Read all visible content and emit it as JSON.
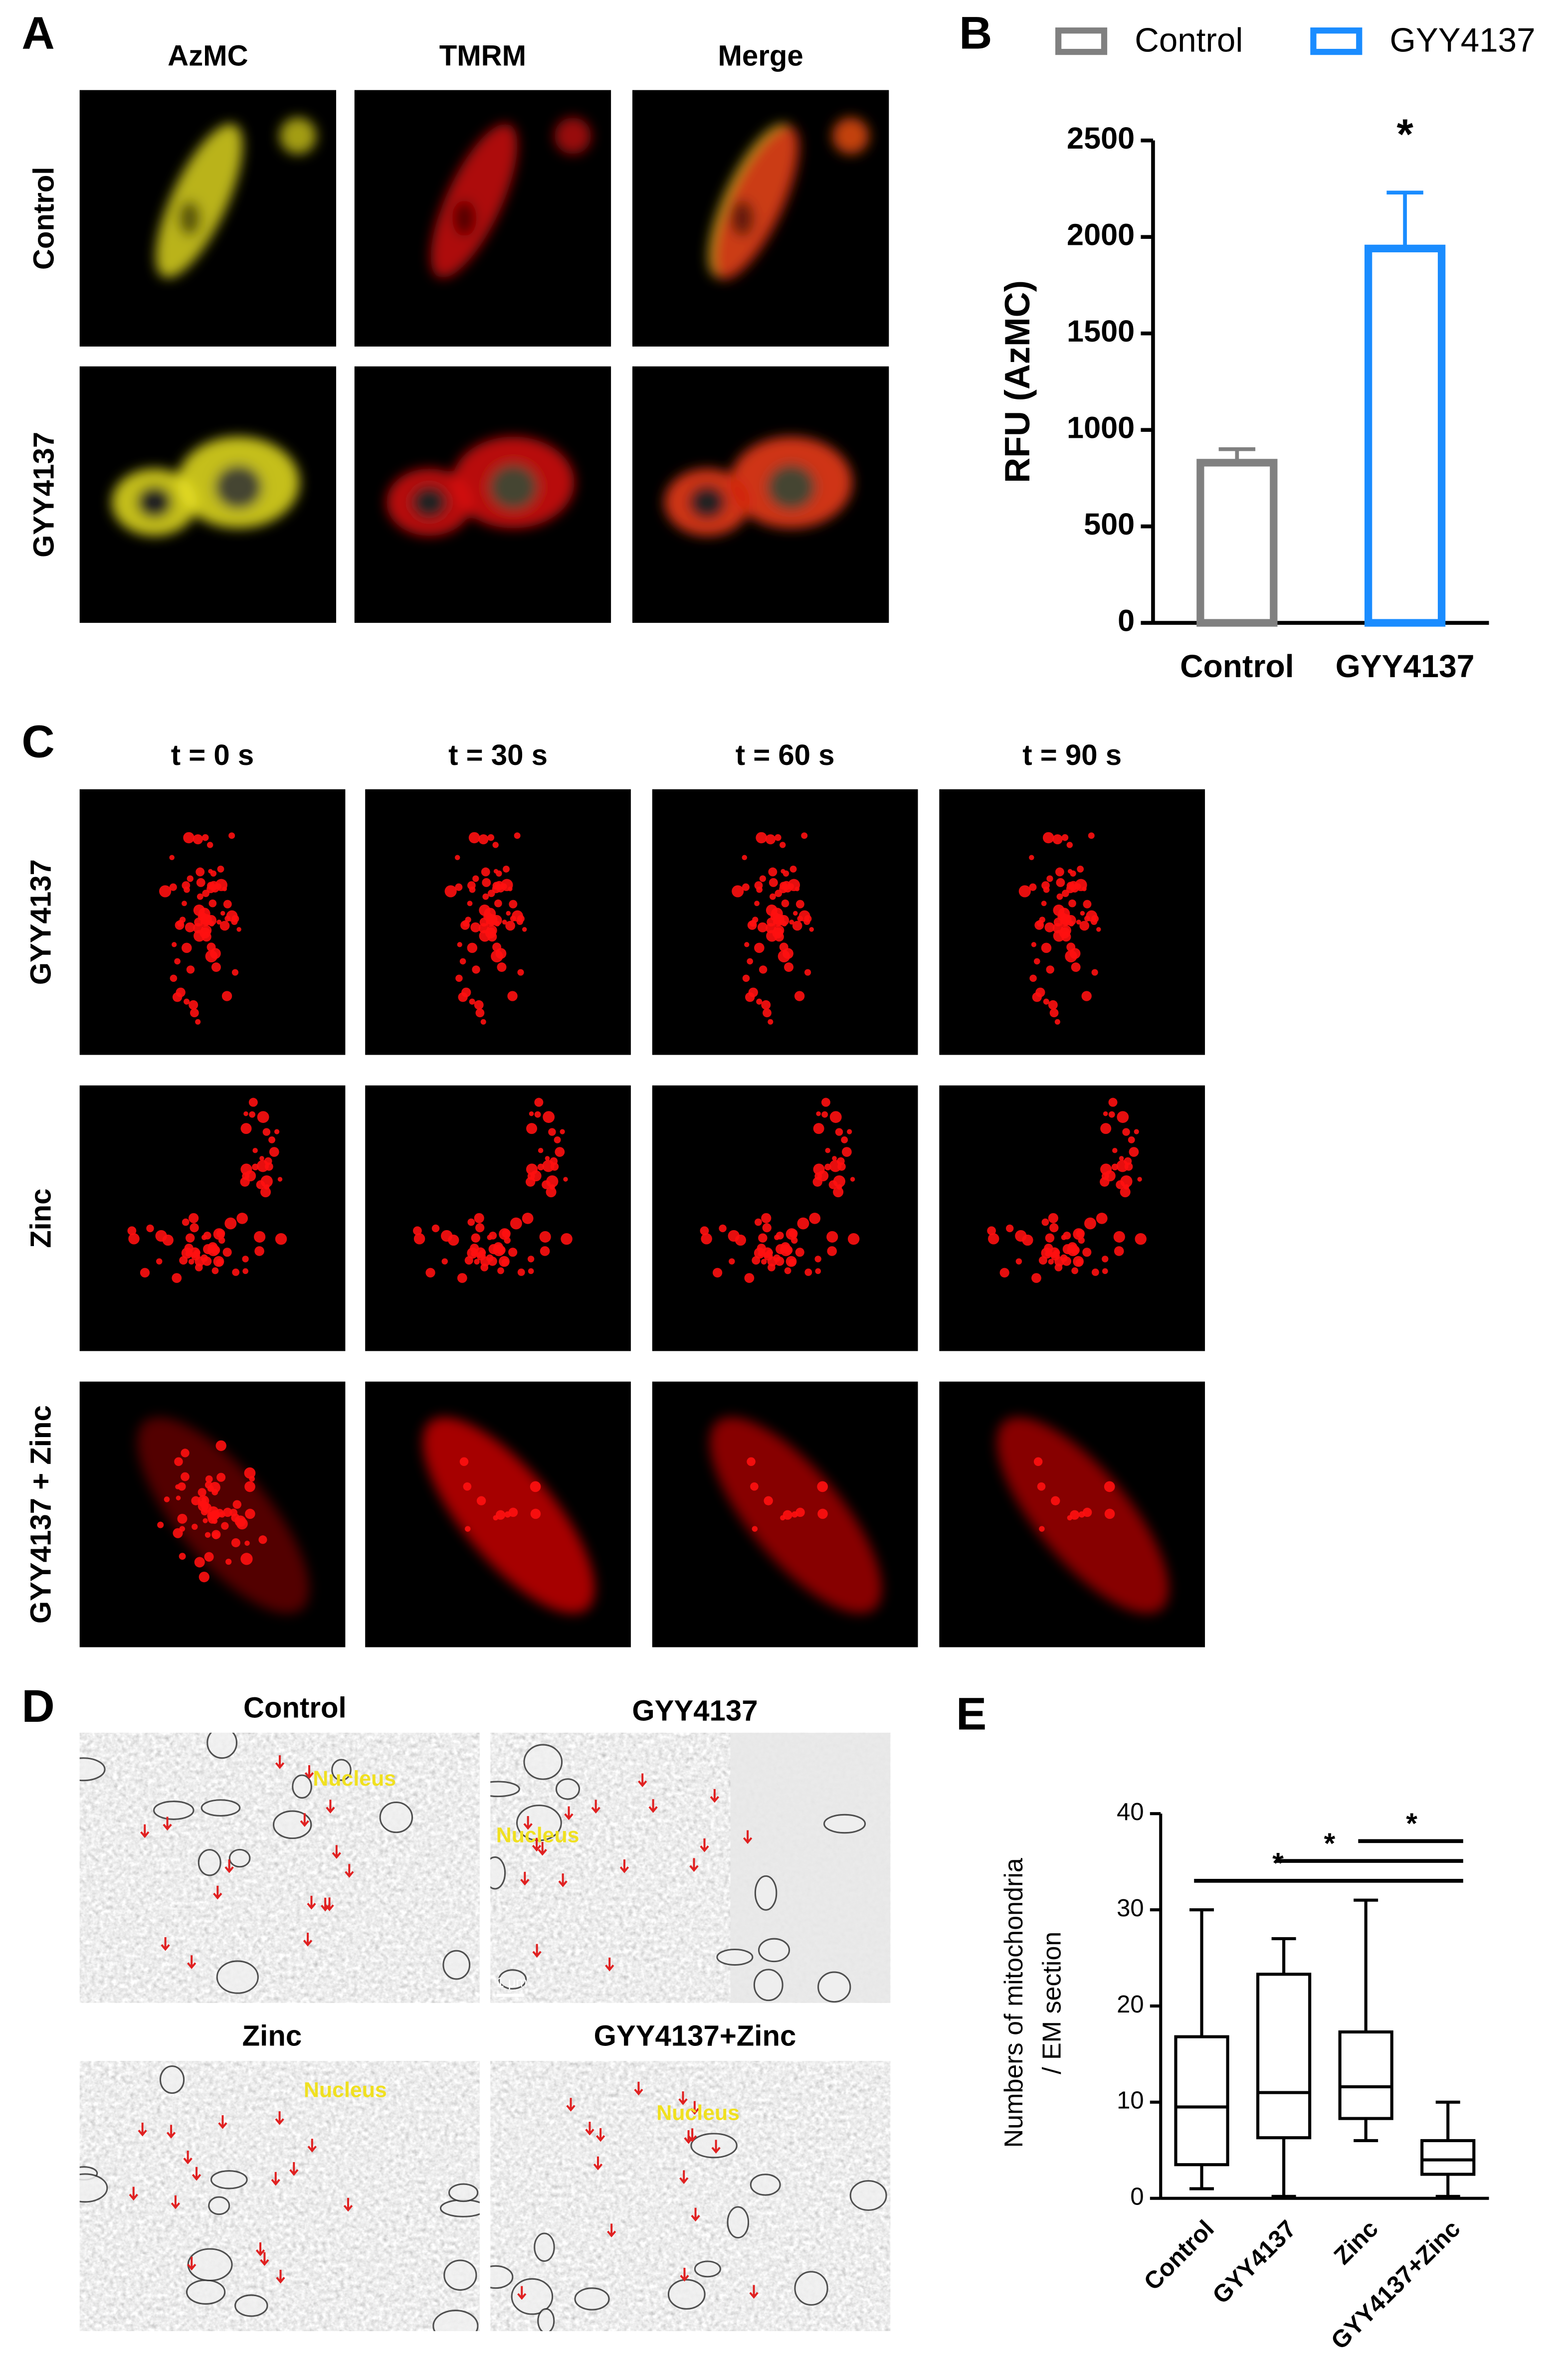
{
  "panel_A": {
    "letter": "A",
    "columns": [
      "AzMC",
      "TMRM",
      "Merge"
    ],
    "rows": [
      "Control",
      "GYY4137"
    ]
  },
  "panel_C": {
    "letter": "C",
    "columns": [
      "t = 0 s",
      "t = 30 s",
      "t = 60 s",
      "t = 90 s"
    ],
    "rows": [
      "GYY4137",
      "Zinc",
      "GYY4137 + Zinc"
    ]
  },
  "panel_D": {
    "letter": "D",
    "images": [
      {
        "title": "Control",
        "label": "Nucleus"
      },
      {
        "title": "GYY4137",
        "label": "Nucleus",
        "scale_bar": "1 μm"
      },
      {
        "title": "Zinc",
        "label": "Nucleus"
      },
      {
        "title": "GYY4137+Zinc",
        "label": "Nucleus"
      }
    ]
  },
  "chart_data": [
    {
      "type": "bar",
      "letter": "B",
      "y_label": "RFU (AzMC)",
      "categories": [
        "Control",
        "GYY4137"
      ],
      "series": [
        {
          "name": "Control",
          "color": "#808080",
          "values": [
            830,
            null
          ],
          "errors": [
            70,
            null
          ]
        },
        {
          "name": "GYY4137",
          "color": "#1a8cff",
          "values": [
            null,
            1940
          ],
          "errors": [
            null,
            290
          ]
        }
      ],
      "ylim": [
        0,
        2500
      ],
      "yticks": [
        0,
        500,
        1000,
        1500,
        2000,
        2500
      ],
      "annotations": [
        {
          "text": "*",
          "category": 1
        }
      ]
    },
    {
      "type": "box",
      "letter": "E",
      "y_label": [
        "Numbers of mitochondria",
        "/ EM section"
      ],
      "categories": [
        "Control",
        "GYY4137",
        "Zinc",
        "GYY4137+Zinc"
      ],
      "min": [
        1,
        0.2,
        6,
        0.2
      ],
      "q1": [
        3.5,
        6.3,
        8.3,
        2.5
      ],
      "median": [
        9.5,
        11,
        11.6,
        4
      ],
      "q3": [
        16.8,
        23.3,
        17.3,
        6
      ],
      "max": [
        30,
        27,
        31,
        10
      ],
      "color": "#000000",
      "ylim": [
        0,
        40
      ],
      "yticks": [
        0,
        10,
        20,
        30,
        40
      ],
      "significance": [
        {
          "from": 0,
          "to": 3,
          "text": "*"
        },
        {
          "from": 1,
          "to": 3,
          "text": "*"
        },
        {
          "from": 2,
          "to": 3,
          "text": "*"
        }
      ]
    }
  ]
}
